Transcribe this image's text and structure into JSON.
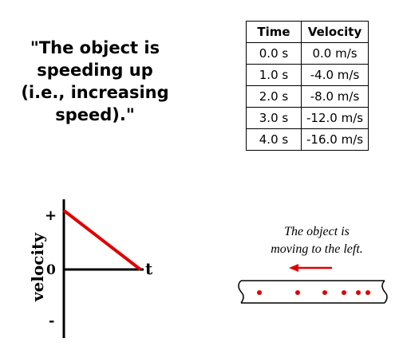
{
  "quote": {
    "lines": [
      "\"The object is",
      "speeding up",
      "(i.e., increasing",
      "speed).\""
    ]
  },
  "table": {
    "headers": [
      "Time",
      "Velocity"
    ],
    "rows": [
      [
        "0.0 s",
        "0.0 m/s"
      ],
      [
        "1.0 s",
        "-4.0 m/s"
      ],
      [
        "2.0 s",
        "-8.0 m/s"
      ],
      [
        "3.0 s",
        "-12.0 m/s"
      ],
      [
        "4.0 s",
        "-16.0 m/s"
      ]
    ]
  },
  "graph": {
    "y_axis_label": "velocity",
    "x_axis_label": "t",
    "plus_label": "+",
    "zero_label": "0",
    "minus_label": "-",
    "line_color": "#e00000"
  },
  "caption": {
    "lines": [
      "The object is",
      "moving to the left."
    ]
  },
  "strip": {
    "dot_color": "#e00000",
    "arrow_color": "#e00000",
    "dot_count": 6
  }
}
